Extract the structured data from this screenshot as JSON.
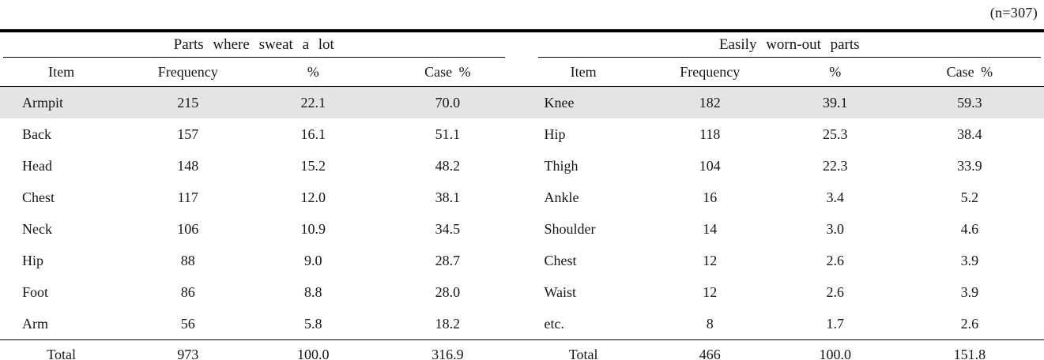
{
  "note": "(n=307)",
  "table": {
    "colors": {
      "highlight": "#e4e4e4",
      "rule": "#000000"
    },
    "highlight_row_index": 0,
    "sections": [
      {
        "title": "Parts where sweat a lot",
        "columns": [
          "Item",
          "Frequency",
          "%",
          "Case %"
        ],
        "rows": [
          [
            "Armpit",
            "215",
            "22.1",
            "70.0"
          ],
          [
            "Back",
            "157",
            "16.1",
            "51.1"
          ],
          [
            "Head",
            "148",
            "15.2",
            "48.2"
          ],
          [
            "Chest",
            "117",
            "12.0",
            "38.1"
          ],
          [
            "Neck",
            "106",
            "10.9",
            "34.5"
          ],
          [
            "Hip",
            "88",
            "9.0",
            "28.7"
          ],
          [
            "Foot",
            "86",
            "8.8",
            "28.0"
          ],
          [
            "Arm",
            "56",
            "5.8",
            "18.2"
          ]
        ],
        "total": [
          "Total",
          "973",
          "100.0",
          "316.9"
        ]
      },
      {
        "title": "Easily worn-out parts",
        "columns": [
          "Item",
          "Frequency",
          "%",
          "Case %"
        ],
        "rows": [
          [
            "Knee",
            "182",
            "39.1",
            "59.3"
          ],
          [
            "Hip",
            "118",
            "25.3",
            "38.4"
          ],
          [
            "Thigh",
            "104",
            "22.3",
            "33.9"
          ],
          [
            "Ankle",
            "16",
            "3.4",
            "5.2"
          ],
          [
            "Shoulder",
            "14",
            "3.0",
            "4.6"
          ],
          [
            "Chest",
            "12",
            "2.6",
            "3.9"
          ],
          [
            "Waist",
            "12",
            "2.6",
            "3.9"
          ],
          [
            "etc.",
            "8",
            "1.7",
            "2.6"
          ]
        ],
        "total": [
          "Total",
          "466",
          "100.0",
          "151.8"
        ]
      }
    ]
  }
}
